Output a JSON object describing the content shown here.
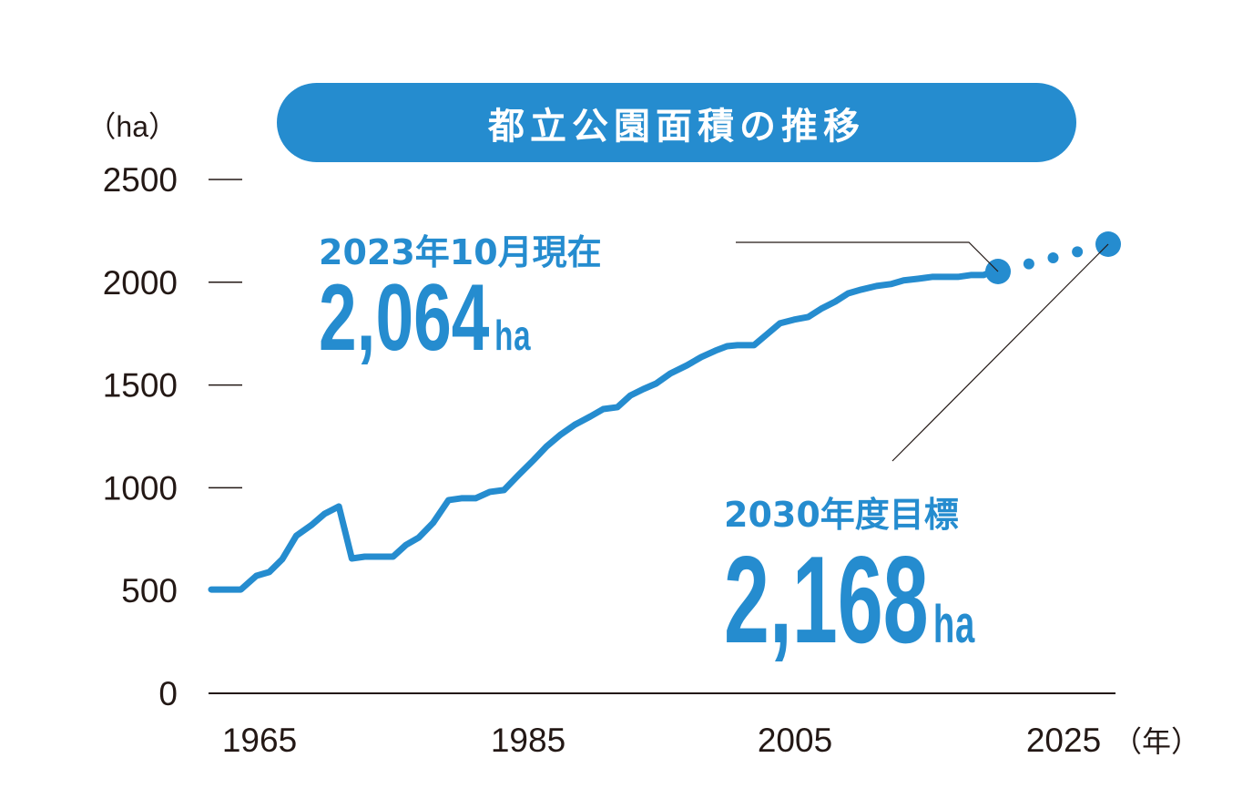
{
  "chart_data": {
    "type": "line",
    "title": "都立公園面積の推移",
    "ylabel": "（ha）",
    "xlabel": "（年）",
    "ylim": [
      0,
      2500
    ],
    "yticks": [
      0,
      500,
      1000,
      1500,
      2000,
      2500
    ],
    "xticks": [
      1965,
      1985,
      2005,
      2025
    ],
    "grid": false,
    "accent_color": "#258ccf",
    "series": [
      {
        "x": [
          1962,
          1964.3,
          1965.5,
          1966.5,
          1967.5,
          1968.6,
          1969.8,
          1970.8,
          1971.9,
          1972.9,
          1973.9,
          1976.1,
          1977.1,
          1978.1,
          1979.2,
          1980.4,
          1981.4,
          1982.5,
          1983.6,
          1984.7,
          1985.8,
          1987.0,
          1988.0,
          1989.1,
          1990.2,
          1991.4,
          1992.4,
          1993.5,
          1994.5,
          1995.5,
          1996.5,
          1997.6,
          1998.9,
          2000.0,
          2001.1,
          2002.0,
          2002.8,
          2004.1,
          2005.1,
          2006.1,
          2007.2,
          2008.3,
          2009.3,
          2010.4,
          2011.4,
          2012.4,
          2013.6,
          2014.7,
          2015.7,
          2016.8,
          2017.9,
          2019.9,
          2020.9,
          2021.9,
          2023
        ],
        "y": [
          505,
          505,
          572,
          590,
          652,
          767,
          820,
          874,
          909,
          656,
          665,
          665,
          722,
          758,
          829,
          940,
          949,
          949,
          980,
          989,
          1060,
          1135,
          1201,
          1259,
          1307,
          1347,
          1383,
          1392,
          1449,
          1480,
          1507,
          1556,
          1596,
          1636,
          1667,
          1689,
          1694,
          1694,
          1747,
          1800,
          1818,
          1831,
          1871,
          1906,
          1946,
          1964,
          1982,
          1991,
          2009,
          2017,
          2026,
          2026,
          2035,
          2035,
          2064
        ]
      }
    ],
    "projection": {
      "from": [
        2023,
        2064
      ],
      "to": [
        2030,
        2168
      ],
      "style": "dotted"
    },
    "annotations": [
      {
        "heading": "2023年10月現在",
        "value": "2,064",
        "unit": "ha",
        "x": 2023,
        "y": 2064
      },
      {
        "heading": "2030年度目標",
        "value": "2,168",
        "unit": "ha",
        "x": 2030,
        "y": 2168
      }
    ]
  }
}
